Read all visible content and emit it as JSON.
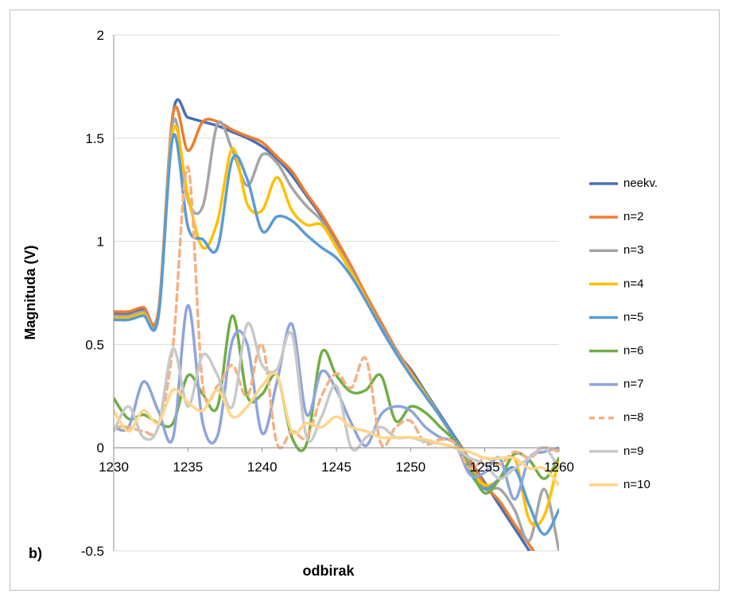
{
  "chart_data": {
    "type": "line",
    "x_label": "odbirak",
    "y_label": "Magnituda (V)",
    "annotation": "b)",
    "x": [
      1230,
      1231,
      1232,
      1233,
      1234,
      1235,
      1236,
      1237,
      1238,
      1239,
      1240,
      1241,
      1242,
      1243,
      1244,
      1245,
      1246,
      1247,
      1248,
      1249,
      1250,
      1251,
      1252,
      1253,
      1254,
      1255,
      1256,
      1257,
      1258,
      1259,
      1260
    ],
    "xlim": [
      1230,
      1260
    ],
    "xticks": [
      1230,
      1235,
      1240,
      1245,
      1250,
      1255,
      1260
    ],
    "ylim": [
      -0.5,
      2
    ],
    "yticks": [
      -0.5,
      0,
      0.5,
      1,
      1.5,
      2
    ],
    "grid": true,
    "legend": "right",
    "series": [
      {
        "name": "neekv.",
        "color": "#4a6fb5",
        "values": [
          0.65,
          0.65,
          0.67,
          0.65,
          1.62,
          1.6,
          1.58,
          1.56,
          1.53,
          1.5,
          1.46,
          1.4,
          1.32,
          1.22,
          1.12,
          1.0,
          0.87,
          0.73,
          0.6,
          0.47,
          0.38,
          0.27,
          0.16,
          0.05,
          -0.06,
          -0.17,
          -0.28,
          -0.39,
          -0.5,
          -0.61,
          -0.72
        ]
      },
      {
        "name": "n=2",
        "color": "#ed7d31",
        "values": [
          0.66,
          0.66,
          0.68,
          0.66,
          1.62,
          1.44,
          1.58,
          1.58,
          1.54,
          1.51,
          1.48,
          1.41,
          1.34,
          1.23,
          1.13,
          1.01,
          0.88,
          0.74,
          0.61,
          0.48,
          0.37,
          0.26,
          0.15,
          0.04,
          -0.06,
          -0.18,
          -0.26,
          -0.37,
          -0.47,
          -0.58,
          -0.7
        ]
      },
      {
        "name": "n=3",
        "color": "#a5a5a5",
        "values": [
          0.64,
          0.64,
          0.66,
          0.64,
          1.58,
          1.2,
          1.17,
          1.57,
          1.44,
          1.27,
          1.42,
          1.38,
          1.26,
          1.17,
          1.1,
          0.98,
          0.86,
          0.72,
          0.59,
          0.47,
          0.36,
          0.26,
          0.15,
          0.04,
          -0.08,
          -0.2,
          -0.2,
          -0.3,
          -0.45,
          -0.2,
          -0.5
        ]
      },
      {
        "name": "n=4",
        "color": "#ffc000",
        "values": [
          0.63,
          0.63,
          0.65,
          0.63,
          1.54,
          1.22,
          0.97,
          1.1,
          1.45,
          1.18,
          1.15,
          1.31,
          1.15,
          1.08,
          1.08,
          0.97,
          0.85,
          0.72,
          0.58,
          0.46,
          0.36,
          0.26,
          0.15,
          0.04,
          -0.1,
          -0.18,
          -0.15,
          -0.05,
          -0.35,
          -0.33,
          -0.05
        ]
      },
      {
        "name": "n=5",
        "color": "#5b9bd5",
        "values": [
          0.62,
          0.62,
          0.64,
          0.63,
          1.51,
          1.07,
          1.01,
          0.97,
          1.4,
          1.3,
          1.05,
          1.12,
          1.1,
          1.03,
          0.97,
          0.92,
          0.83,
          0.71,
          0.58,
          0.46,
          0.35,
          0.25,
          0.15,
          0.04,
          -0.12,
          -0.2,
          -0.15,
          -0.1,
          -0.28,
          -0.42,
          -0.3
        ]
      },
      {
        "name": "n=6",
        "color": "#70ad47",
        "values": [
          0.24,
          0.14,
          0.16,
          0.12,
          0.12,
          0.35,
          0.26,
          0.2,
          0.64,
          0.25,
          0.26,
          0.35,
          0.05,
          0.02,
          0.46,
          0.35,
          0.27,
          0.28,
          0.35,
          0.13,
          0.2,
          0.17,
          0.1,
          0.03,
          -0.1,
          -0.22,
          -0.15,
          -0.03,
          -0.06,
          -0.15,
          -0.05
        ]
      },
      {
        "name": "n=7",
        "color": "#8ea5dc",
        "values": [
          0.1,
          0.1,
          0.32,
          0.18,
          0.05,
          0.69,
          0.12,
          0.06,
          0.52,
          0.5,
          0.07,
          0.32,
          0.6,
          0.16,
          0.37,
          0.28,
          0.12,
          0.01,
          0.16,
          0.2,
          0.18,
          0.1,
          0.05,
          0.02,
          -0.13,
          -0.12,
          -0.05,
          -0.25,
          -0.05,
          -0.02,
          0.0
        ]
      },
      {
        "name": "n=8",
        "color": "#f4b183",
        "dashed": true,
        "values": [
          0.1,
          0.1,
          0.08,
          0.1,
          0.5,
          1.36,
          0.3,
          0.3,
          0.4,
          0.25,
          0.5,
          0.02,
          0.08,
          0.05,
          0.25,
          0.36,
          0.29,
          0.43,
          0.02,
          0.1,
          0.13,
          0.02,
          0.04,
          0.02,
          -0.1,
          -0.05,
          -0.08,
          -0.02,
          -0.05,
          0.0,
          -0.02
        ]
      },
      {
        "name": "n=9",
        "color": "#c9c9c9",
        "values": [
          0.08,
          0.2,
          0.05,
          0.1,
          0.48,
          0.2,
          0.45,
          0.35,
          0.2,
          0.6,
          0.4,
          0.38,
          0.55,
          0.05,
          0.15,
          0.3,
          0.0,
          0.05,
          0.1,
          0.05,
          0.05,
          0.03,
          0.02,
          0.0,
          -0.05,
          -0.08,
          -0.15,
          -0.1,
          -0.05,
          0.0,
          -0.1
        ]
      },
      {
        "name": "n=10",
        "color": "#ffd58a",
        "values": [
          0.18,
          0.08,
          0.18,
          0.12,
          0.28,
          0.22,
          0.18,
          0.28,
          0.15,
          0.2,
          0.3,
          0.35,
          0.08,
          0.12,
          0.1,
          0.15,
          0.1,
          0.08,
          0.05,
          0.05,
          0.05,
          0.04,
          0.02,
          0.0,
          -0.02,
          -0.05,
          -0.05,
          -0.05,
          -0.1,
          -0.1,
          -0.18
        ]
      }
    ]
  }
}
